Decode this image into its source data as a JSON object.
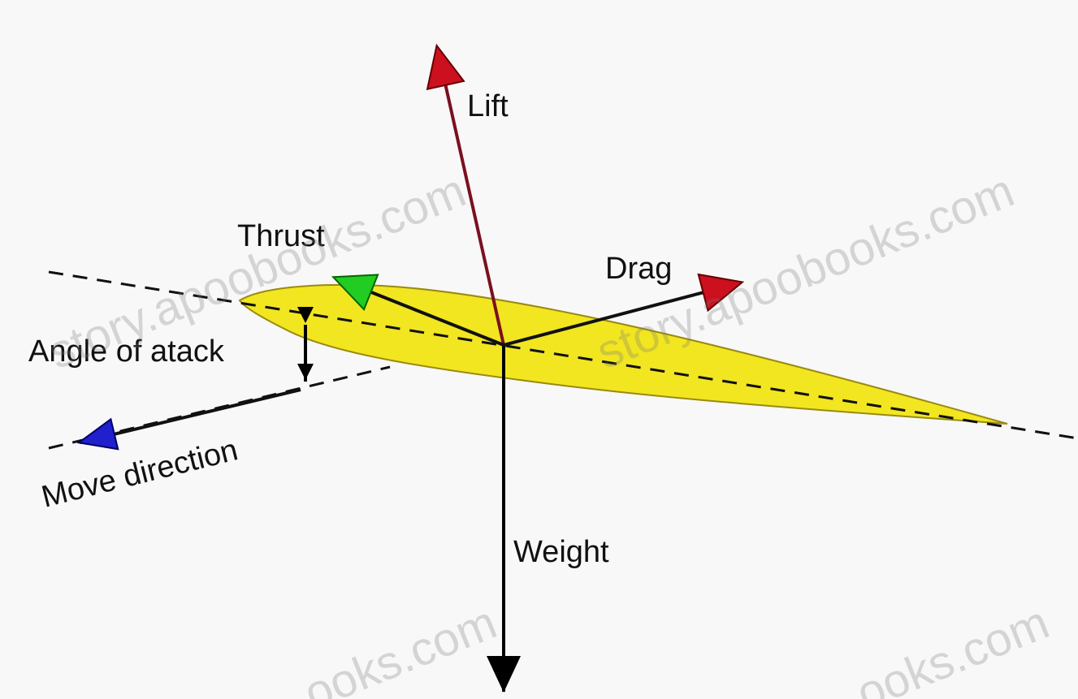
{
  "labels": {
    "lift": "Lift",
    "thrust": "Thrust",
    "drag": "Drag",
    "angle": "Angle of atack",
    "move": "Move direction",
    "weight": "Weight"
  },
  "watermarks": [
    "story.apoobooks.com",
    "story.apoobooks.com",
    "ooks.com",
    "ooks.com"
  ]
}
